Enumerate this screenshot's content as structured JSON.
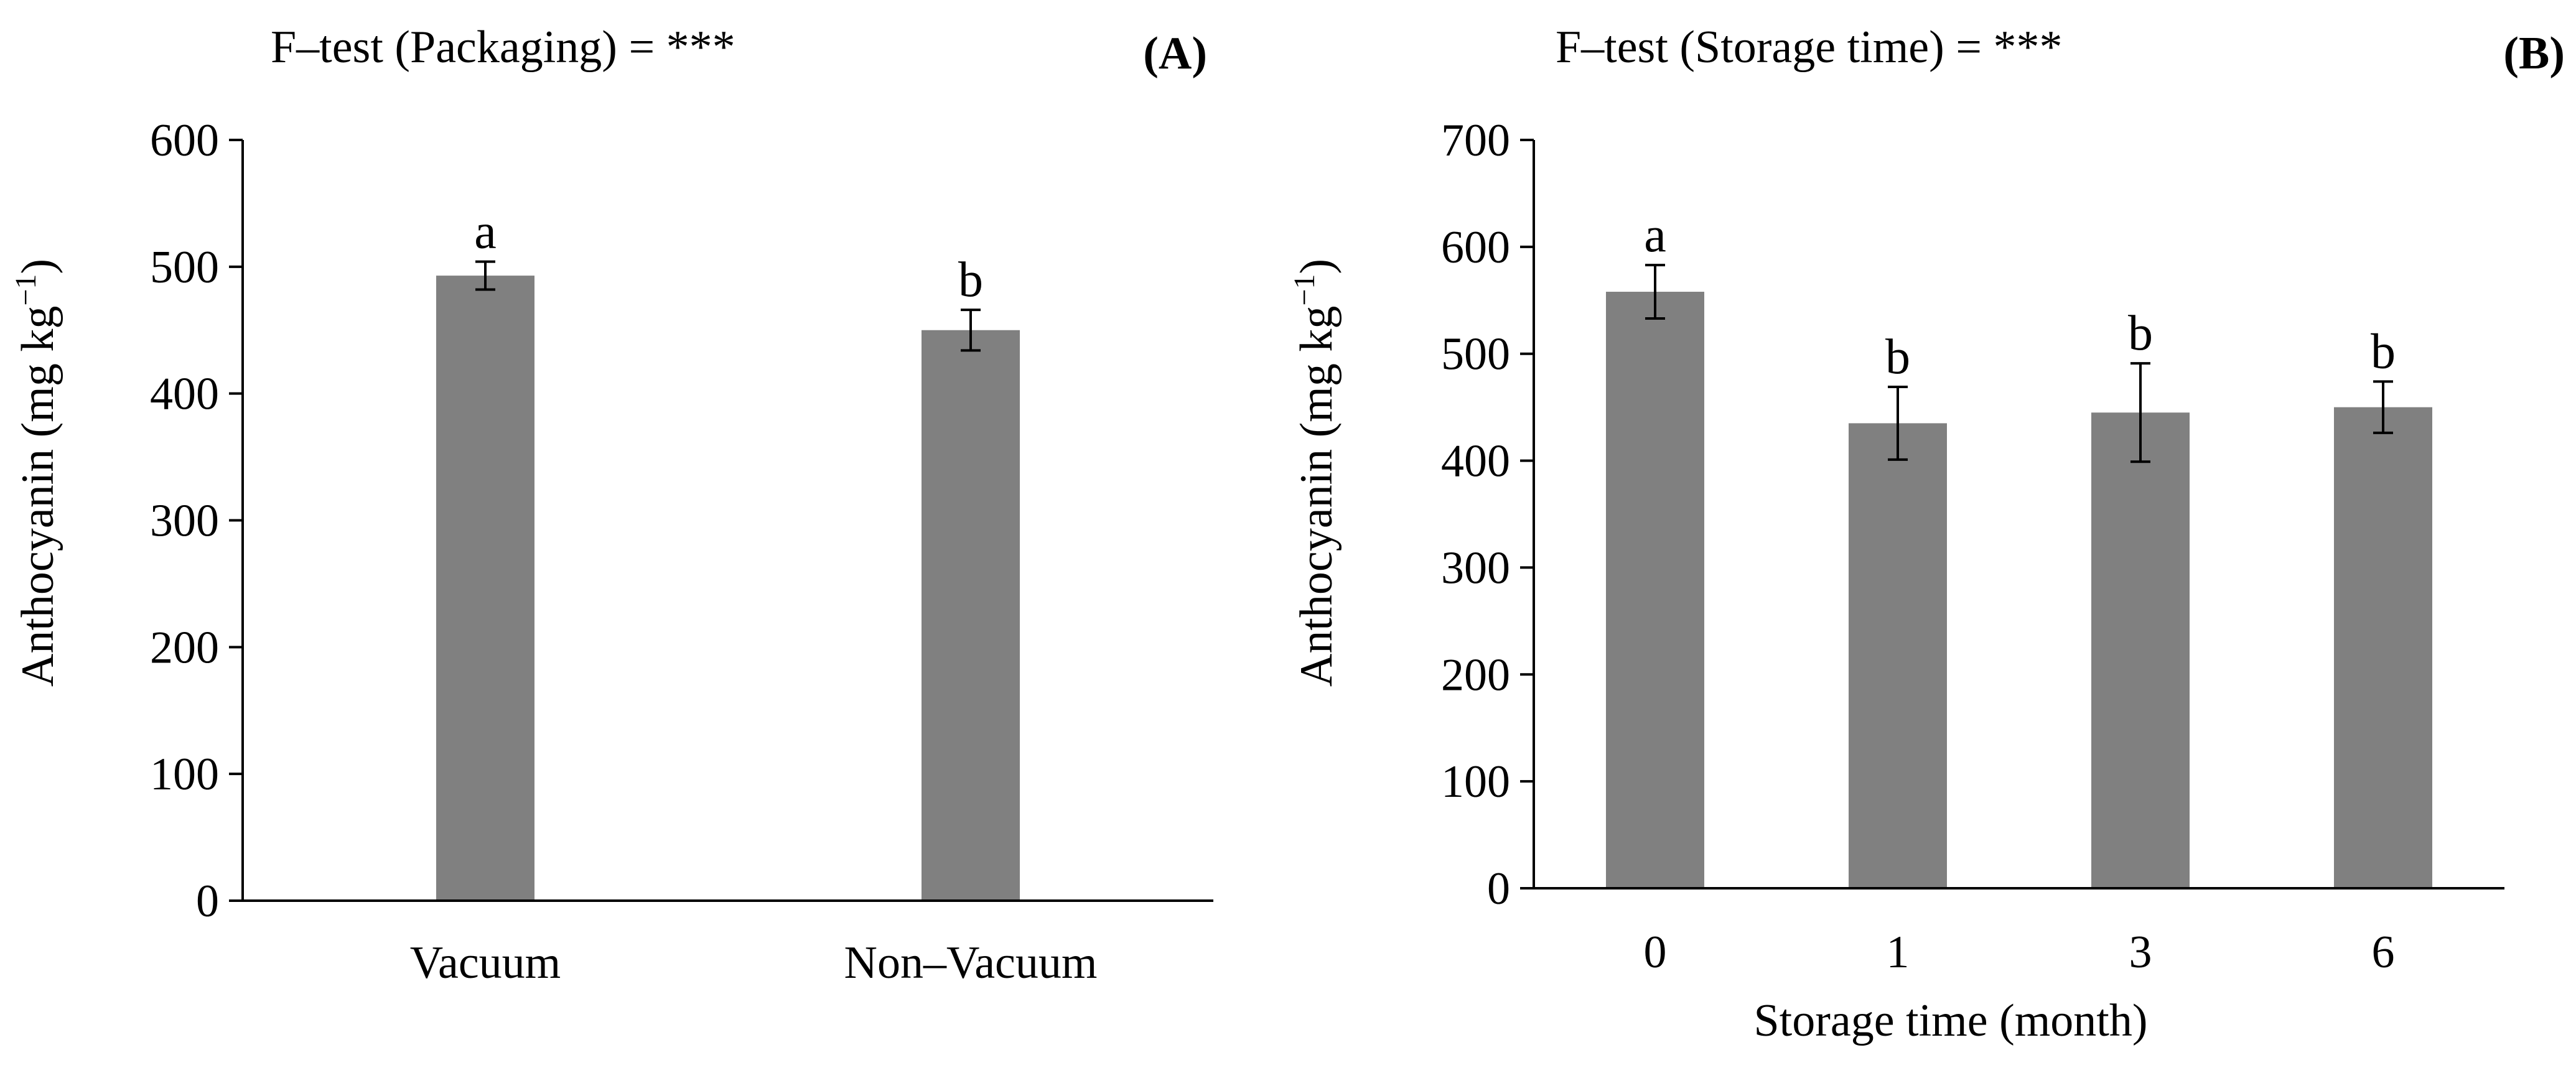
{
  "bar_color": "#808080",
  "axis_color": "#000000",
  "chart_data": [
    {
      "type": "bar",
      "panel": "(A)",
      "title": "F–test (Packaging) = ***",
      "xlabel": "",
      "ylabel_main": "Anthocyanin (mg kg",
      "ylabel_sup": "−1",
      "ylabel_close": ")",
      "categories": [
        "Vacuum",
        "Non–Vacuum"
      ],
      "values": [
        493,
        450
      ],
      "errors": [
        11,
        16
      ],
      "letters": [
        "a",
        "b"
      ],
      "ylim": [
        0,
        600
      ],
      "yticks": [
        "0",
        "100",
        "200",
        "300",
        "400",
        "500",
        "600"
      ]
    },
    {
      "type": "bar",
      "panel": "(B)",
      "title": "F–test (Storage time) = ***",
      "xlabel": "Storage time (month)",
      "ylabel_main": "Anthocyanin (mg kg",
      "ylabel_sup": "−1",
      "ylabel_close": ")",
      "categories": [
        "0",
        "1",
        "3",
        "6"
      ],
      "values": [
        558,
        435,
        445,
        450
      ],
      "errors": [
        25,
        34,
        46,
        24
      ],
      "letters": [
        "a",
        "b",
        "b",
        "b"
      ],
      "ylim": [
        0,
        700
      ],
      "yticks": [
        "0",
        "100",
        "200",
        "300",
        "400",
        "500",
        "600",
        "700"
      ]
    }
  ]
}
